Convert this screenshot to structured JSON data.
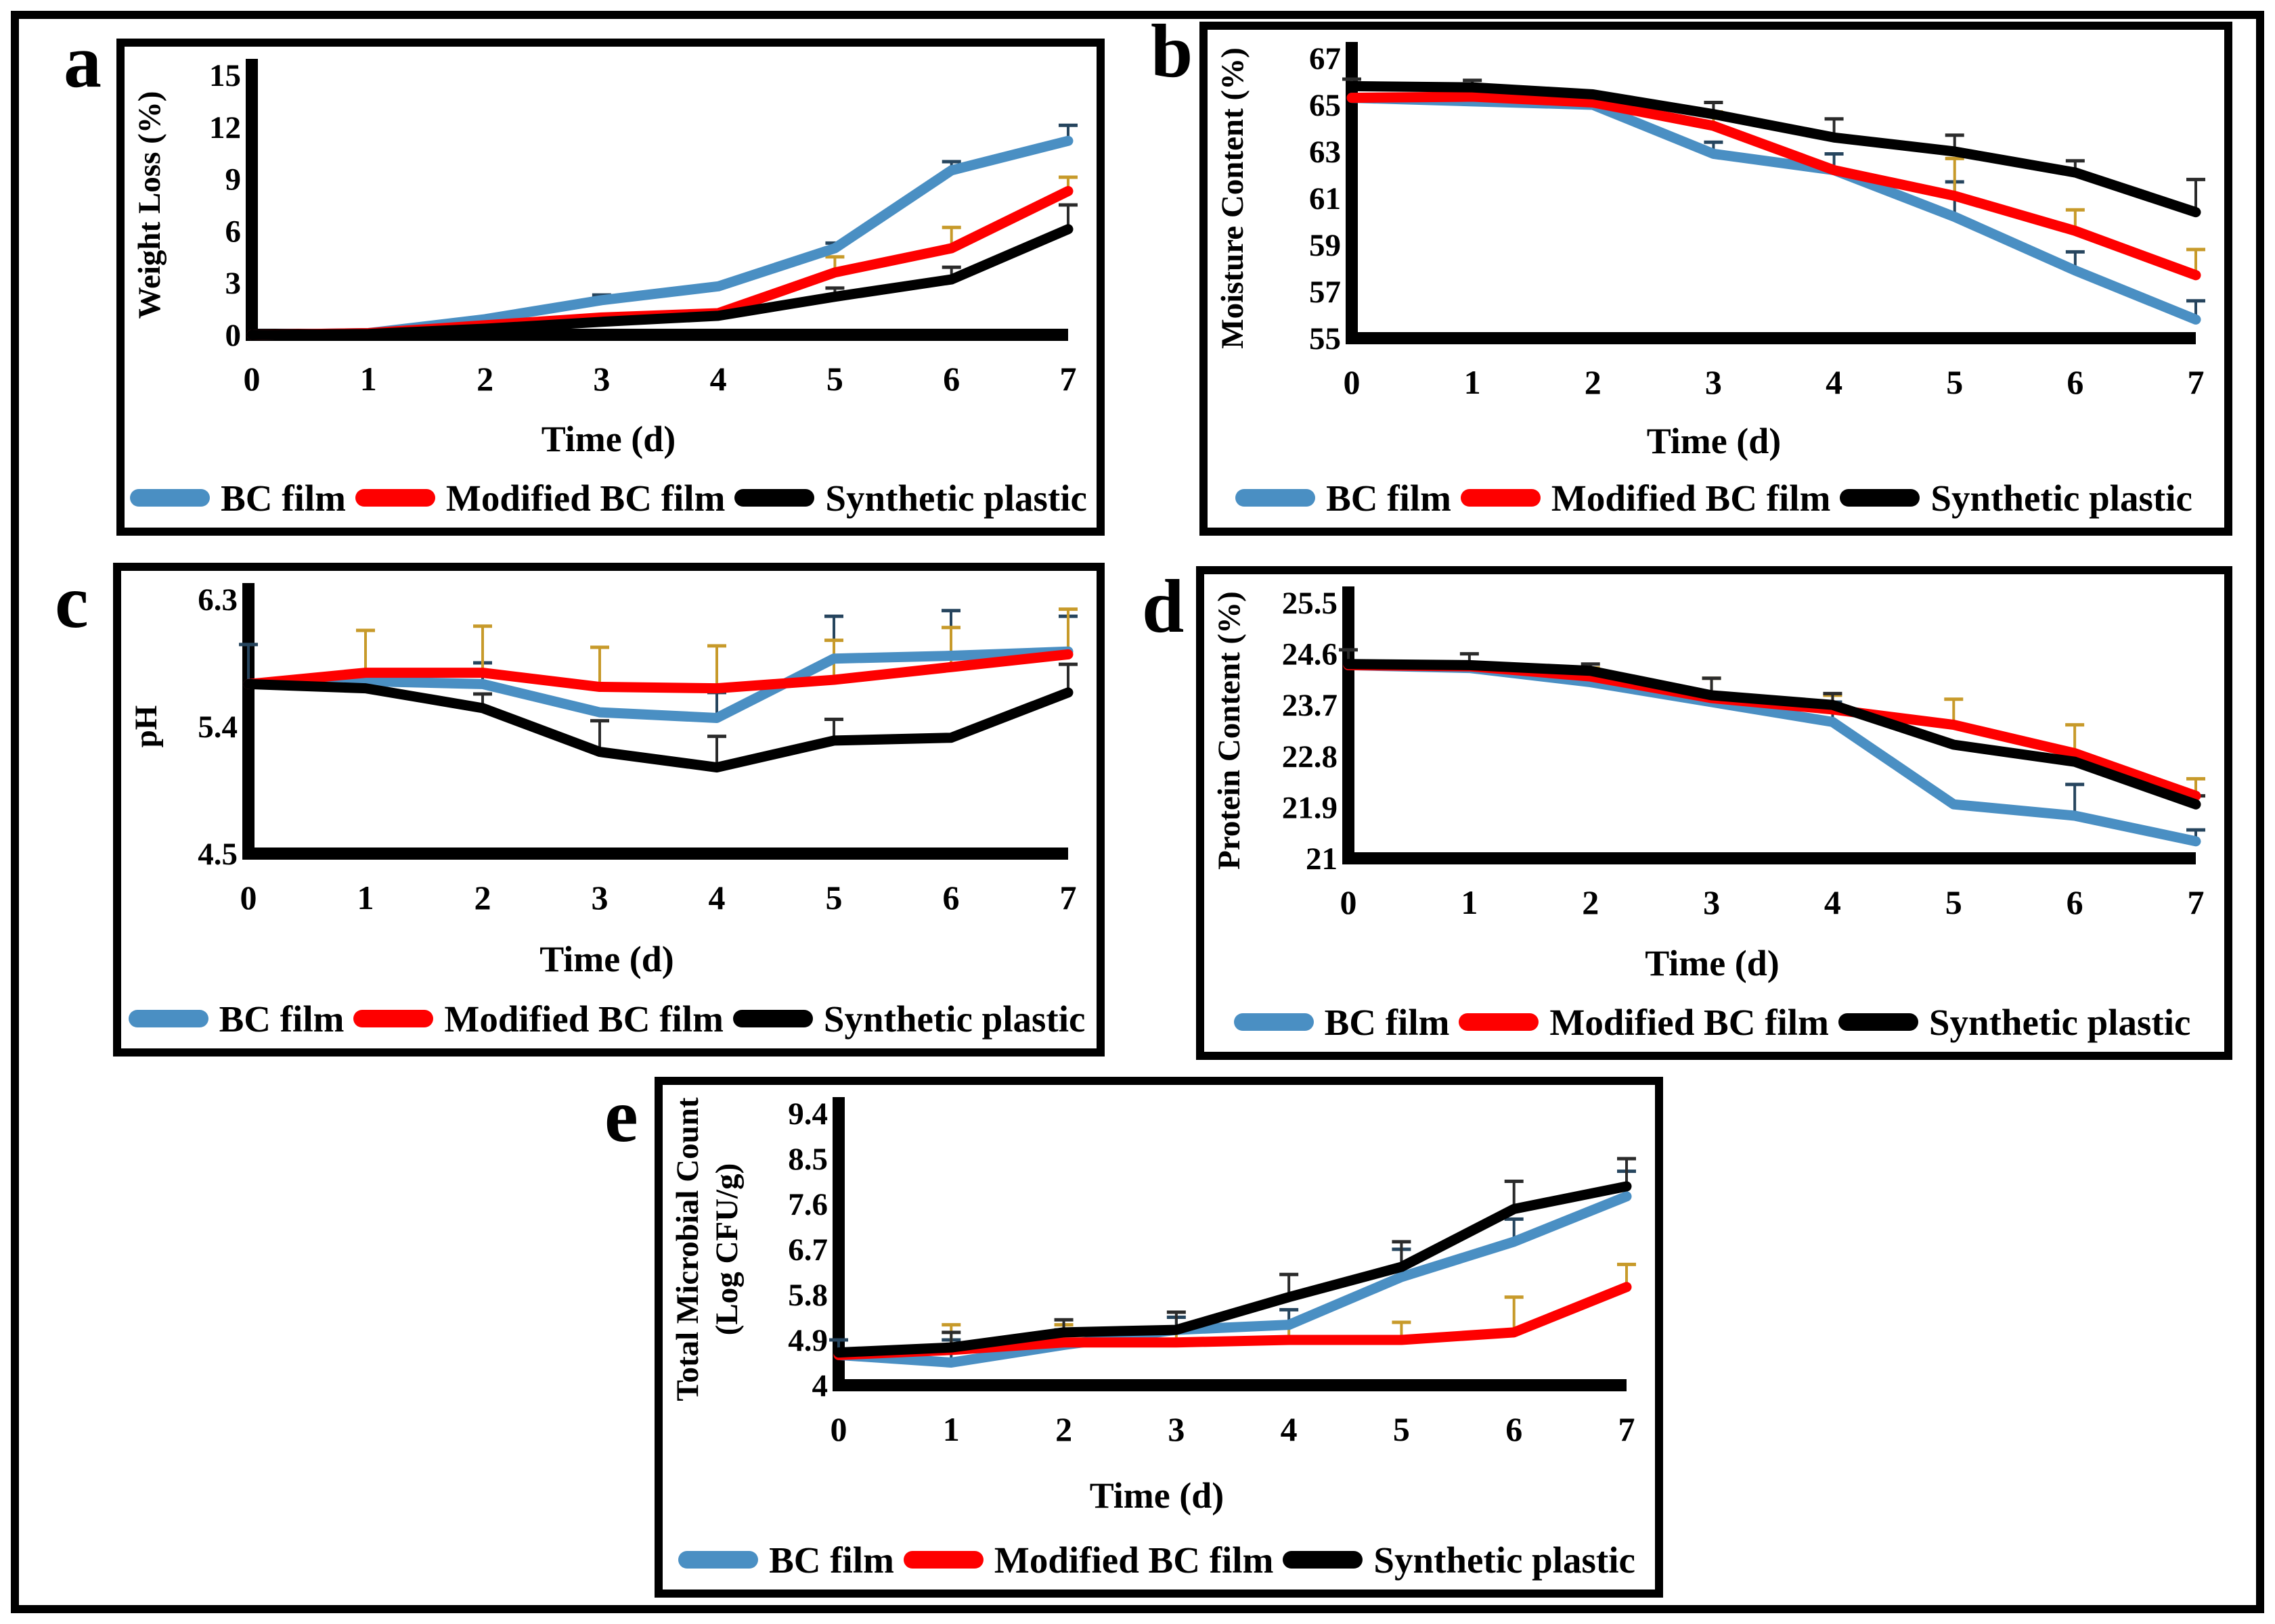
{
  "figure": {
    "description": "Five line charts (a-e) comparing BC film, Modified BC film and Synthetic plastic over storage time",
    "accent_colors": {
      "bc_film": "#4a8fc3",
      "modified_bc_film": "#fe0000",
      "synthetic_plastic": "#000000"
    }
  },
  "chart_data": [
    {
      "type": "line",
      "panel_label": "a",
      "title": "Weight Loss",
      "xlabel": "Time (d)",
      "ylabel": "Weight Loss (%)",
      "ylabel_lines": [
        "Weight Loss (%)"
      ],
      "x": [
        0,
        1,
        2,
        3,
        4,
        5,
        6,
        7
      ],
      "ylim": [
        0,
        15
      ],
      "yticks": [
        0,
        3,
        6,
        9,
        12,
        15
      ],
      "grid": false,
      "legend_position": "bottom",
      "series": [
        {
          "name": "BC film",
          "color": "#4a8fc3",
          "err_color": "#26455e",
          "values": [
            0,
            0.1,
            0.9,
            2.0,
            2.8,
            5.0,
            9.5,
            11.2
          ],
          "err": [
            0,
            0,
            0,
            0.3,
            0,
            0.3,
            0.5,
            0.9
          ]
        },
        {
          "name": "Modified BC film",
          "color": "#fe0000",
          "err_color": "#c79a2a",
          "values": [
            0,
            0.1,
            0.55,
            1.0,
            1.25,
            3.6,
            5.0,
            8.3
          ],
          "err": [
            0,
            0,
            0,
            0,
            0,
            0.9,
            1.2,
            0.8
          ]
        },
        {
          "name": "Synthetic plastic",
          "color": "#000000",
          "err_color": "#2b2b2b",
          "values": [
            0,
            0.05,
            0.35,
            0.75,
            1.1,
            2.2,
            3.2,
            6.1
          ],
          "err": [
            0,
            0.1,
            0,
            0,
            0,
            0.5,
            0.7,
            1.4
          ]
        }
      ]
    },
    {
      "type": "line",
      "panel_label": "b",
      "title": "Moisture Content",
      "xlabel": "Time (d)",
      "ylabel": "Moisture Content (%)",
      "ylabel_lines": [
        "Moisture Content (%)"
      ],
      "x": [
        0,
        1,
        2,
        3,
        4,
        5,
        6,
        7
      ],
      "ylim": [
        55,
        67
      ],
      "yticks": [
        55,
        57,
        59,
        61,
        63,
        65,
        67
      ],
      "grid": false,
      "legend_position": "bottom",
      "series": [
        {
          "name": "BC film",
          "color": "#4a8fc3",
          "err_color": "#26455e",
          "values": [
            65.3,
            65.15,
            65.0,
            62.9,
            62.2,
            60.2,
            57.9,
            55.8
          ],
          "err": [
            0,
            0.4,
            0,
            0.5,
            0.7,
            1.5,
            0.8,
            0.8
          ]
        },
        {
          "name": "Modified BC film",
          "color": "#fe0000",
          "err_color": "#c79a2a",
          "values": [
            65.3,
            65.35,
            65.1,
            64.1,
            62.2,
            61.1,
            59.6,
            57.7
          ],
          "err": [
            0,
            0,
            0.4,
            0.6,
            0,
            1.6,
            0.9,
            1.1
          ]
        },
        {
          "name": "Synthetic plastic",
          "color": "#000000",
          "err_color": "#2b2b2b",
          "values": [
            65.8,
            65.75,
            65.45,
            64.6,
            63.6,
            63.0,
            62.1,
            60.4
          ],
          "err": [
            0.3,
            0.3,
            0,
            0.5,
            0.8,
            0.7,
            0.5,
            1.4
          ]
        }
      ]
    },
    {
      "type": "line",
      "panel_label": "c",
      "title": "pH",
      "xlabel": "Time (d)",
      "ylabel": "pH",
      "ylabel_lines": [
        "pH"
      ],
      "x": [
        0,
        1,
        2,
        3,
        4,
        5,
        6,
        7
      ],
      "ylim": [
        4.5,
        6.3
      ],
      "yticks": [
        4.5,
        5.4,
        6.3
      ],
      "grid": false,
      "legend_position": "bottom",
      "series": [
        {
          "name": "BC film",
          "color": "#4a8fc3",
          "err_color": "#26455e",
          "values": [
            5.7,
            5.72,
            5.7,
            5.5,
            5.46,
            5.88,
            5.9,
            5.93
          ],
          "err": [
            0.28,
            0,
            0.15,
            0,
            0.18,
            0.3,
            0.32,
            0.25
          ]
        },
        {
          "name": "Modified BC film",
          "color": "#fe0000",
          "err_color": "#c79a2a",
          "values": [
            5.7,
            5.78,
            5.78,
            5.68,
            5.67,
            5.73,
            5.82,
            5.91
          ],
          "err": [
            0,
            0.3,
            0.33,
            0.28,
            0.3,
            0.28,
            0.28,
            0.32
          ]
        },
        {
          "name": "Synthetic plastic",
          "color": "#000000",
          "err_color": "#2b2b2b",
          "values": [
            5.7,
            5.67,
            5.53,
            5.22,
            5.11,
            5.3,
            5.32,
            5.64
          ],
          "err": [
            0,
            0.12,
            0.1,
            0.22,
            0.22,
            0.15,
            0,
            0.2
          ]
        }
      ]
    },
    {
      "type": "line",
      "panel_label": "d",
      "title": "Protein Content",
      "xlabel": "Time (d)",
      "ylabel": "Protein Content (%)",
      "ylabel_lines": [
        "Protein Content (%)"
      ],
      "x": [
        0,
        1,
        2,
        3,
        4,
        5,
        6,
        7
      ],
      "ylim": [
        21,
        25.5
      ],
      "yticks": [
        21,
        21.9,
        22.8,
        23.7,
        24.6,
        25.5
      ],
      "grid": false,
      "legend_position": "bottom",
      "series": [
        {
          "name": "BC film",
          "color": "#4a8fc3",
          "err_color": "#26455e",
          "values": [
            24.4,
            24.35,
            24.1,
            23.75,
            23.4,
            21.95,
            21.75,
            21.3
          ],
          "err": [
            0,
            0,
            0,
            0,
            0.35,
            0,
            0.55,
            0.2
          ]
        },
        {
          "name": "Modified BC film",
          "color": "#fe0000",
          "err_color": "#c79a2a",
          "values": [
            24.4,
            24.38,
            24.2,
            23.82,
            23.62,
            23.35,
            22.85,
            22.1
          ],
          "err": [
            0,
            0,
            0.15,
            0.35,
            0.25,
            0.45,
            0.5,
            0.3
          ]
        },
        {
          "name": "Synthetic plastic",
          "color": "#000000",
          "err_color": "#2b2b2b",
          "values": [
            24.42,
            24.4,
            24.3,
            23.87,
            23.7,
            23.0,
            22.7,
            21.95
          ],
          "err": [
            0.25,
            0.2,
            0.12,
            0.3,
            0.2,
            0,
            0,
            0.15
          ]
        }
      ]
    },
    {
      "type": "line",
      "panel_label": "e",
      "title": "Total Microbial Count",
      "xlabel": "Time (d)",
      "ylabel": "Total Microbial Count (Log CFU/g)",
      "ylabel_lines": [
        "Total Microbial Count",
        "(Log CFU/g)"
      ],
      "x": [
        0,
        1,
        2,
        3,
        4,
        5,
        6,
        7
      ],
      "ylim": [
        4,
        9.4
      ],
      "yticks": [
        4,
        4.9,
        5.8,
        6.7,
        7.6,
        8.5,
        9.4
      ],
      "grid": false,
      "legend_position": "bottom",
      "series": [
        {
          "name": "BC film",
          "color": "#4a8fc3",
          "err_color": "#26455e",
          "values": [
            4.6,
            4.45,
            4.8,
            5.1,
            5.2,
            6.15,
            6.85,
            7.75
          ],
          "err": [
            0.3,
            0.45,
            0.3,
            0.25,
            0.3,
            0.55,
            0.45,
            0.5
          ]
        },
        {
          "name": "Modified BC film",
          "color": "#fe0000",
          "err_color": "#c79a2a",
          "values": [
            4.6,
            4.7,
            4.85,
            4.85,
            4.9,
            4.9,
            5.05,
            5.95
          ],
          "err": [
            0,
            0.5,
            0.35,
            0.3,
            0.3,
            0.35,
            0.7,
            0.45
          ]
        },
        {
          "name": "Synthetic plastic",
          "color": "#000000",
          "err_color": "#2b2b2b",
          "values": [
            4.65,
            4.75,
            5.05,
            5.1,
            5.75,
            6.35,
            7.5,
            7.95
          ],
          "err": [
            0,
            0.3,
            0.25,
            0.35,
            0.45,
            0.5,
            0.55,
            0.55
          ]
        }
      ]
    }
  ]
}
